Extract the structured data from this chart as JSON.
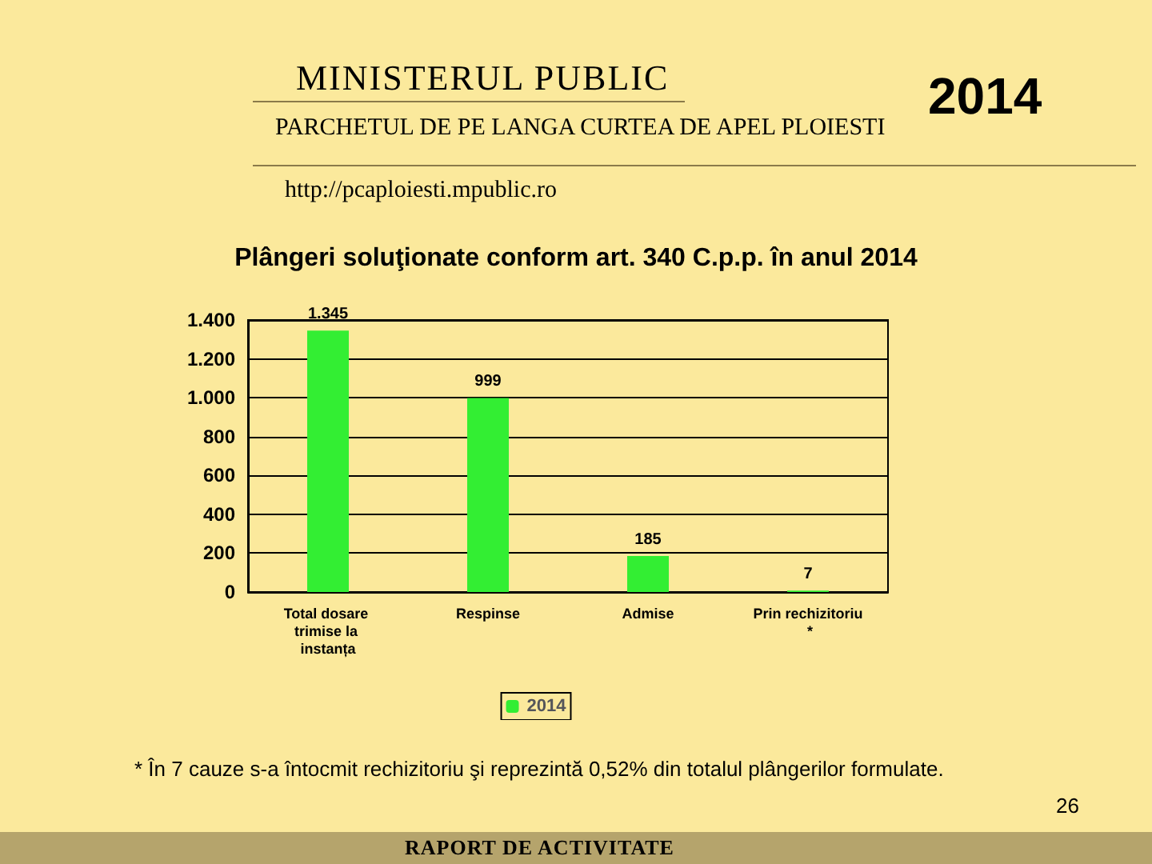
{
  "chart_data": {
    "type": "bar",
    "title": "Plângeri soluţionate conform art. 340 C.p.p. în anul 2014",
    "categories": [
      "Total dosare trimise la instanța",
      "Respinse",
      "Admise",
      "Prin rechizitoriu *"
    ],
    "series": [
      {
        "name": "2014",
        "color": "#33ee33",
        "values": [
          1345,
          999,
          185,
          7
        ],
        "value_labels": [
          "1.345",
          "999",
          "185",
          "7"
        ]
      }
    ],
    "ylim": [
      0,
      1400
    ],
    "yticks": [
      0,
      200,
      400,
      600,
      800,
      {
        "value": 1000,
        "label": "1.000"
      },
      {
        "value": 1200,
        "label": "1.200"
      },
      {
        "value": 1400,
        "label": "1.400"
      }
    ],
    "grid": "y",
    "legend": "bottom",
    "annotations": [
      "MINISTERUL PUBLIC",
      "PARCHETUL DE PE LANGA CURTEA DE APEL PLOIESTI",
      "http://pcaploiesti.mpublic.ro",
      "2014",
      "* În 7 cauze s-a întocmit rechizitoriu şi reprezintă 0,52%  din totalul plângerilor formulate.",
      "26",
      "RAPORT DE ACTIVITATE"
    ]
  }
}
